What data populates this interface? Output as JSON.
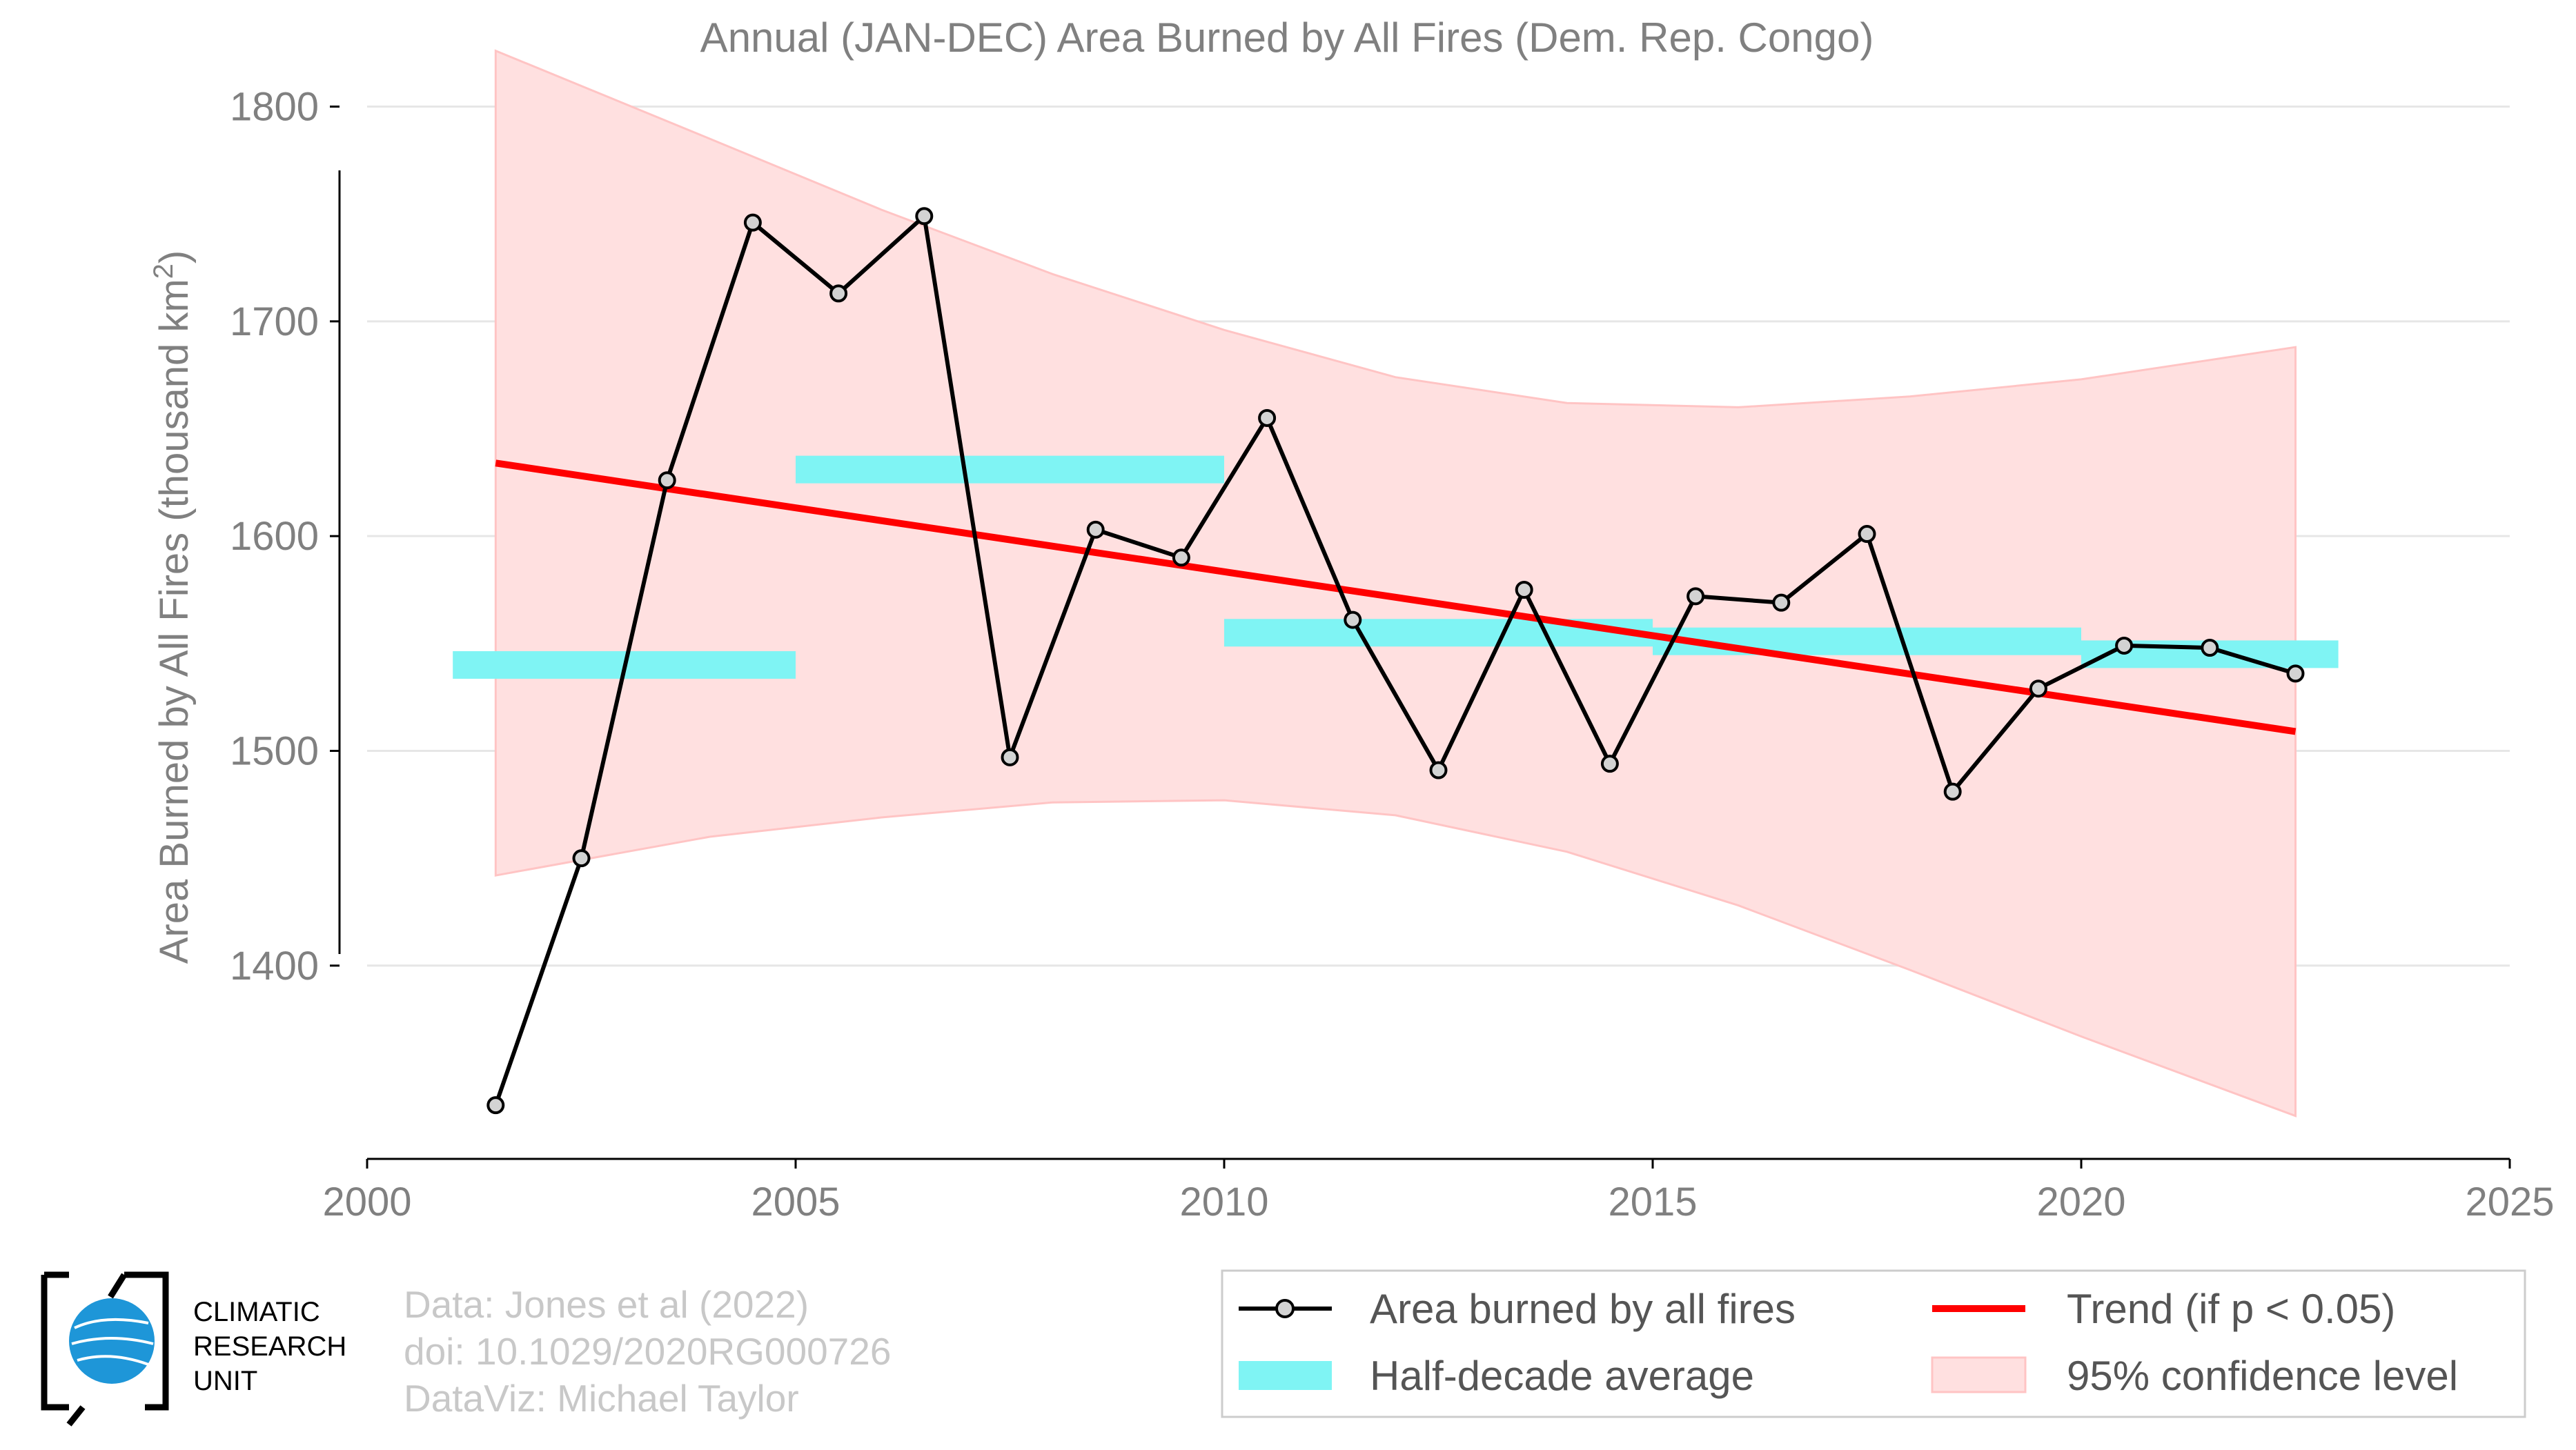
{
  "chart_data": {
    "type": "line",
    "title": "Annual (JAN-DEC) Area Burned by All Fires (Dem. Rep. Congo)",
    "xlabel": "",
    "ylabel": "Area Burned by All Fires (thousand km",
    "ylabel_sup": "2",
    "ylabel_end": ")",
    "xlim": [
      2000,
      2025
    ],
    "ylim": [
      1310,
      1840
    ],
    "xticks": [
      2000,
      2005,
      2010,
      2015,
      2020,
      2025
    ],
    "yticks": [
      1400,
      1500,
      1600,
      1700,
      1800
    ],
    "grid": "horizontal",
    "legend_position": "bottom-right",
    "series": [
      {
        "name": "Area burned by all fires",
        "color": "#000000",
        "marker_fill": "#d3d3d3",
        "x": [
          2001.5,
          2002.5,
          2003.5,
          2004.5,
          2005.5,
          2006.5,
          2007.5,
          2008.5,
          2009.5,
          2010.5,
          2011.5,
          2012.5,
          2013.5,
          2014.5,
          2015.5,
          2016.5,
          2017.5,
          2018.5,
          2019.5,
          2020.5,
          2021.5,
          2022.5
        ],
        "values": [
          1335,
          1450,
          1626,
          1746,
          1713,
          1749,
          1497,
          1603,
          1590,
          1655,
          1561,
          1491,
          1575,
          1494,
          1572,
          1569,
          1601,
          1481,
          1529,
          1549,
          1548,
          1536
        ]
      },
      {
        "name": "Trend (if p < 0.05)",
        "color": "#ff0000",
        "x": [
          2001.5,
          2022.5
        ],
        "values": [
          1634,
          1509
        ]
      }
    ],
    "half_decade_average": {
      "name": "Half-decade average",
      "color": "#7ff4f4",
      "bars": [
        {
          "x0": 2001.0,
          "x1": 2005.0,
          "value": 1540
        },
        {
          "x0": 2005.0,
          "x1": 2010.0,
          "value": 1631
        },
        {
          "x0": 2010.0,
          "x1": 2015.0,
          "value": 1555
        },
        {
          "x0": 2015.0,
          "x1": 2020.0,
          "value": 1551
        },
        {
          "x0": 2020.0,
          "x1": 2023.0,
          "value": 1545
        }
      ]
    },
    "confidence_band": {
      "name": "95% confidence level",
      "color": "#ffe0e0",
      "x": [
        2001.5,
        2004.0,
        2006.0,
        2008.0,
        2010.0,
        2012.0,
        2014.0,
        2016.0,
        2018.0,
        2020.0,
        2022.5
      ],
      "upper": [
        1826,
        1785,
        1752,
        1722,
        1696,
        1674,
        1662,
        1660,
        1665,
        1673,
        1688
      ],
      "lower": [
        1442,
        1460,
        1469,
        1476,
        1477,
        1470,
        1453,
        1428,
        1398,
        1367,
        1330
      ]
    }
  },
  "credits": {
    "line1": "Data: Jones et al (2022)",
    "line2": "doi: 10.1029/2020RG000726",
    "line3": "DataViz: Michael Taylor"
  },
  "logo": {
    "line1": "CLIMATIC",
    "line2": "RESEARCH",
    "line3": "UNIT"
  }
}
